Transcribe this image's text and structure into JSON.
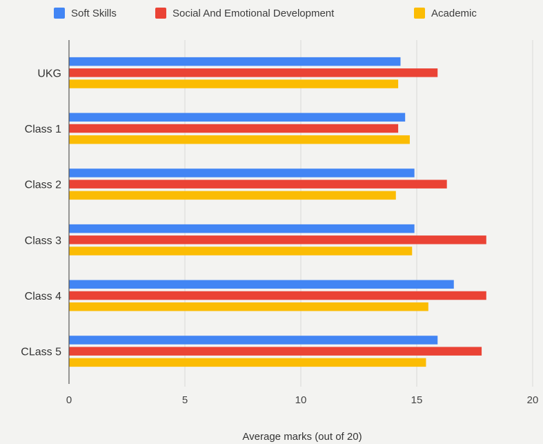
{
  "chart_data": {
    "type": "bar",
    "orientation": "horizontal",
    "categories": [
      "UKG",
      "Class 1",
      "Class 2",
      "Class 3",
      "Class 4",
      "CLass 5"
    ],
    "series": [
      {
        "name": "Soft Skills",
        "color": "#4285f4",
        "values": [
          14.3,
          14.5,
          14.9,
          14.9,
          16.6,
          15.9
        ]
      },
      {
        "name": "Social And Emotional Development",
        "color": "#ea4335",
        "values": [
          15.9,
          14.2,
          16.3,
          18.0,
          18.0,
          17.8
        ]
      },
      {
        "name": "Academic",
        "color": "#fbbc04",
        "values": [
          14.2,
          14.7,
          14.1,
          14.8,
          15.5,
          15.4
        ]
      }
    ],
    "xlabel": "Average marks (out of 20)",
    "ylabel": "",
    "xlim": [
      0,
      20
    ],
    "xticks": [
      "0",
      "5",
      "10",
      "15",
      "20"
    ],
    "grid": true,
    "legend_position": "top"
  }
}
